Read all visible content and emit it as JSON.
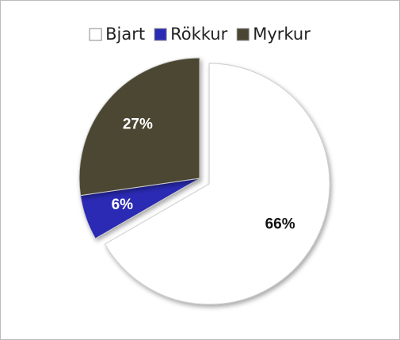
{
  "chart_data": {
    "type": "pie",
    "categories": [
      "Bjart",
      "Rökkur",
      "Myrkur"
    ],
    "values": [
      66,
      6,
      27
    ],
    "value_labels": [
      "66%",
      "6%",
      "27%"
    ],
    "colors": [
      "#ffffff",
      "#2a2ab4",
      "#4b4632"
    ],
    "legend": "top"
  }
}
